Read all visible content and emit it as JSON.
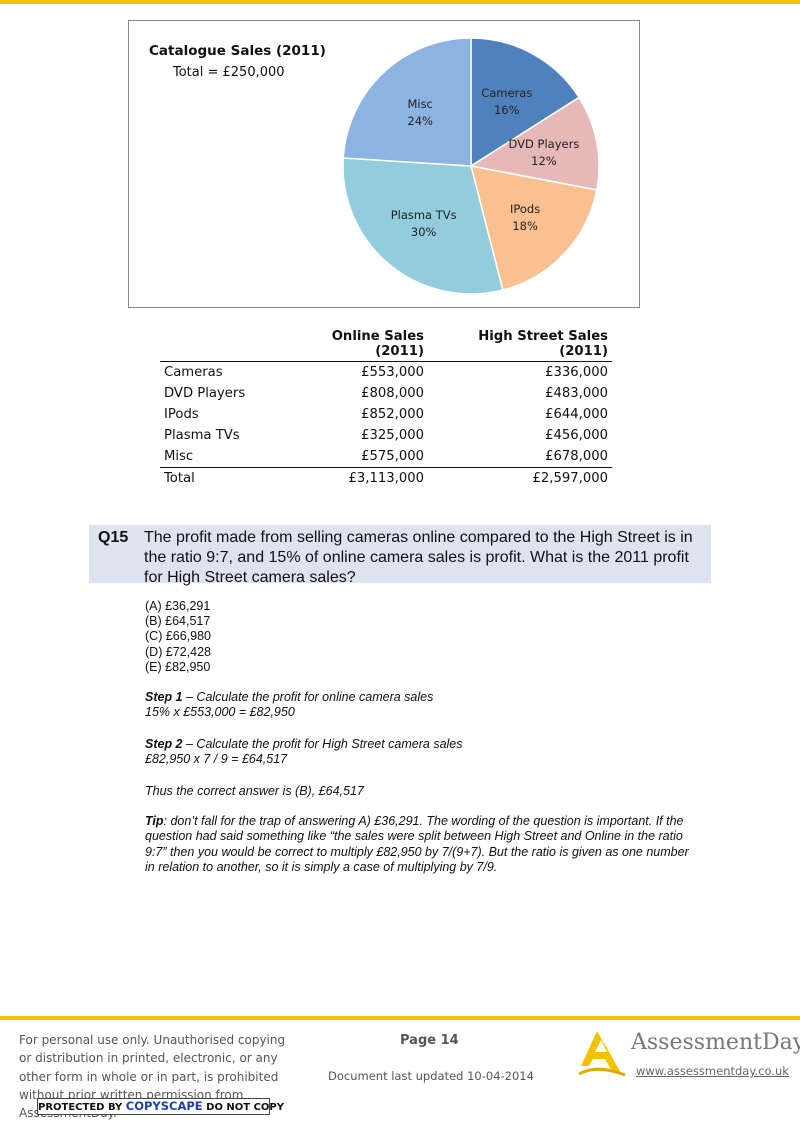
{
  "chart_data": {
    "type": "pie",
    "title": "Catalogue Sales (2011)",
    "subtitle": "Total = £250,000",
    "slices": [
      {
        "label": "Cameras",
        "value": 16,
        "value_label": "16%",
        "color": "#4f81bd"
      },
      {
        "label": "DVD Players",
        "value": 12,
        "value_label": "12%",
        "color": "#e6b9b8"
      },
      {
        "label": "IPods",
        "value": 18,
        "value_label": "18%",
        "color": "#fac090"
      },
      {
        "label": "Plasma TVs",
        "value": 30,
        "value_label": "30%",
        "color": "#93cddd"
      },
      {
        "label": "Misc",
        "value": 24,
        "value_label": "24%",
        "color": "#8db3e2"
      }
    ]
  },
  "table": {
    "headers": [
      "",
      "Online Sales (2011)",
      "High Street Sales (2011)"
    ],
    "rows": [
      [
        "Cameras",
        "£553,000",
        "£336,000"
      ],
      [
        "DVD Players",
        "£808,000",
        "£483,000"
      ],
      [
        "IPods",
        "£852,000",
        "£644,000"
      ],
      [
        "Plasma TVs",
        "£325,000",
        "£456,000"
      ],
      [
        "Misc",
        "£575,000",
        "£678,000"
      ]
    ],
    "total": [
      "Total",
      "£3,113,000",
      "£2,597,000"
    ]
  },
  "question": {
    "number": "Q15",
    "text": "The profit made from selling cameras online compared to the High Street is in the ratio 9:7, and 15% of online camera sales is profit. What is the 2011 profit for High Street camera sales?",
    "options": [
      "(A) £36,291",
      "(B) £64,517",
      "(C) £66,980",
      "(D) £72,428",
      "(E) £82,950"
    ]
  },
  "solution": {
    "step1_label": "Step 1",
    "step1_text": " – Calculate the profit for online camera sales",
    "step1_calc": "15% x £553,000 = £82,950",
    "step2_label": "Step 2",
    "step2_text": " – Calculate the profit for High Street camera sales",
    "step2_calc": "£82,950 x 7 / 9 = £64,517",
    "conclusion": "Thus the correct answer is (B), £64,517",
    "tip_label": "Tip",
    "tip_text": ": don’t fall for the trap of answering A) £36,291. The wording of the question is important. If the question had said something like “the sales were split between High Street and Online in the ratio 9:7” then you would be correct to multiply £82,950 by 7/(9+7).  But the ratio is given as one number in relation to another, so it is simply a case of multiplying by 7/9."
  },
  "footer": {
    "notice": "For personal use only. Unauthorised copying or distribution in printed, electronic, or any other form in whole or in part, is prohibited without prior written permission from AssessmentDay.",
    "copyscape_pre": "PROTECTED BY",
    "copyscape_brand": "COPYSCAPE",
    "copyscape_post": "DO NOT COPY",
    "page": "Page 14",
    "updated": "Document last updated 10-04-2014",
    "brand": "AssessmentDay",
    "url": "www.assessmentday.co.uk",
    "accent_color": "#f2c200"
  }
}
